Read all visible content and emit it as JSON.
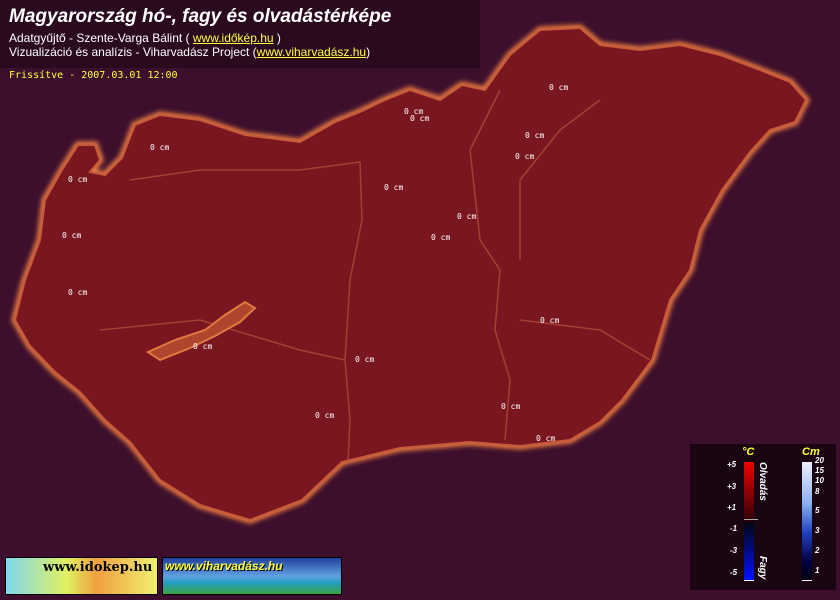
{
  "header": {
    "title": "Magyarország hó-, fagy és olvadástérképe",
    "collector_prefix": "Adatgyűjtő - Szente-Varga Bálint ( ",
    "collector_link": "www.időkép.hu",
    "collector_suffix": " )",
    "viz_prefix": "Vizualizáció és analízis - Viharvadász Project (",
    "viz_link": "www.viharvadász.hu",
    "viz_suffix": ")"
  },
  "updated": "Frissítve - 2007.03.01 12:00",
  "stations": [
    "0 cm",
    "0 cm",
    "0 cm",
    "0 cm",
    "0 cm",
    "0 cm",
    "0 cm",
    "0 cm",
    "0 cm",
    "0 cm",
    "0 cm",
    "0 cm",
    "0 cm",
    "0 cm",
    "0 cm",
    "0 cm",
    "0 cm",
    "0 cm"
  ],
  "legend": {
    "temp_unit": "°C",
    "temp_ticks": [
      "+5",
      "+3",
      "+1",
      "-1",
      "-3",
      "-5"
    ],
    "melt_label": "Olvadás",
    "frost_label": "Fagy",
    "snow_unit": "Cm",
    "snow_ticks": [
      "20",
      "15",
      "10",
      "8",
      "5",
      "3",
      "2",
      "1"
    ]
  },
  "banners": {
    "idokep": "www.idokep.hu",
    "viharvadasz": "www.viharvadász.hu"
  },
  "colors": {
    "background": "#3d0f2c",
    "land": "#7a1620",
    "border_glow": "#e0703a",
    "title_link": "#ffff40"
  }
}
